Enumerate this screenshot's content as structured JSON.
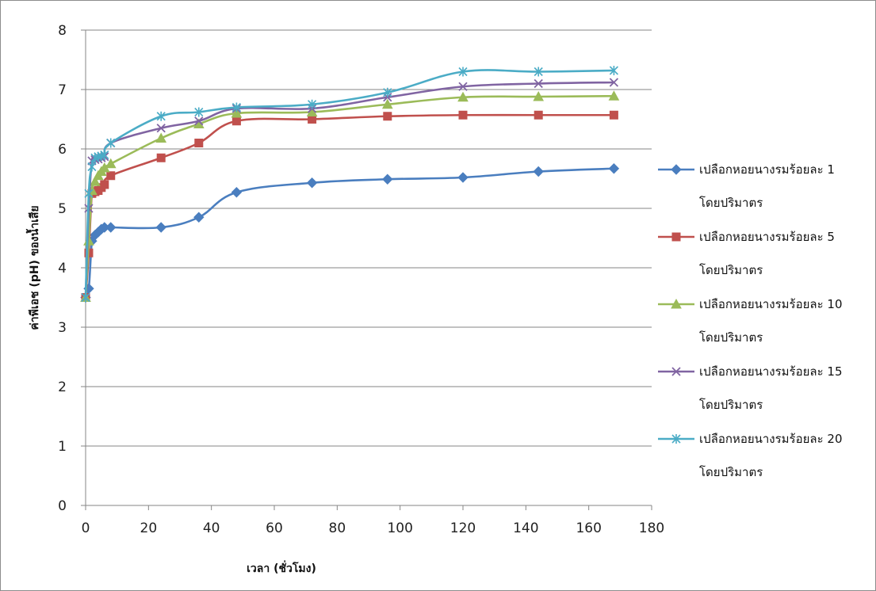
{
  "chart_data": {
    "type": "line",
    "title": "",
    "xlabel": "เวลา (ชั่วโมง)",
    "ylabel": "ค่าพีเอช (pH) ของน้ำเสีย",
    "xlim": [
      0,
      180
    ],
    "ylim": [
      0,
      8
    ],
    "xticks": [
      0,
      20,
      40,
      60,
      80,
      100,
      120,
      140,
      160,
      180
    ],
    "yticks": [
      0,
      1,
      2,
      3,
      4,
      5,
      6,
      7,
      8
    ],
    "grid": "horizontal",
    "legend_position": "right",
    "series": [
      {
        "name": "เปลือกหอยนางรมร้อยละ 1",
        "name_line2": "โดยปริมาตร",
        "color": "#4a7ebf",
        "marker": "diamond",
        "x": [
          0,
          1,
          2,
          3,
          4,
          5,
          6,
          8,
          24,
          36,
          48,
          72,
          96,
          120,
          144,
          168
        ],
        "y": [
          3.5,
          3.65,
          4.45,
          4.55,
          4.6,
          4.65,
          4.68,
          4.68,
          4.68,
          4.85,
          5.27,
          5.43,
          5.49,
          5.52,
          5.62,
          5.67
        ]
      },
      {
        "name": "เปลือกหอยนางรมร้อยละ 5",
        "name_line2": "โดยปริมาตร",
        "color": "#c0504d",
        "marker": "square",
        "x": [
          0,
          1,
          2,
          3,
          4,
          5,
          6,
          8,
          24,
          36,
          48,
          72,
          96,
          120,
          144,
          168
        ],
        "y": [
          3.5,
          4.25,
          5.25,
          5.28,
          5.3,
          5.35,
          5.4,
          5.55,
          5.85,
          6.1,
          6.47,
          6.5,
          6.55,
          6.57,
          6.57,
          6.57
        ]
      },
      {
        "name": "เปลือกหอยนางรมร้อยละ 10",
        "name_line2": "โดยปริมาตร",
        "color": "#9bbb59",
        "marker": "triangle",
        "x": [
          0,
          1,
          2,
          3,
          4,
          5,
          6,
          8,
          24,
          36,
          48,
          72,
          96,
          120,
          144,
          168
        ],
        "y": [
          3.5,
          4.45,
          5.3,
          5.45,
          5.55,
          5.62,
          5.68,
          5.75,
          6.18,
          6.42,
          6.6,
          6.62,
          6.75,
          6.87,
          6.88,
          6.89
        ]
      },
      {
        "name": "เปลือกหอยนางรมร้อยละ 15",
        "name_line2": "โดยปริมาตร",
        "color": "#8064a2",
        "marker": "x",
        "x": [
          0,
          1,
          2,
          3,
          4,
          5,
          6,
          8,
          24,
          36,
          48,
          72,
          96,
          120,
          144,
          168
        ],
        "y": [
          3.5,
          5.0,
          5.8,
          5.82,
          5.83,
          5.85,
          5.87,
          6.1,
          6.35,
          6.47,
          6.68,
          6.68,
          6.87,
          7.05,
          7.1,
          7.12
        ]
      },
      {
        "name": "เปลือกหอยนางรมร้อยละ 20",
        "name_line2": "โดยปริมาตร",
        "color": "#4bacc6",
        "marker": "star",
        "x": [
          0,
          1,
          2,
          3,
          4,
          5,
          6,
          8,
          24,
          36,
          48,
          72,
          96,
          120,
          144,
          168
        ],
        "y": [
          3.5,
          5.25,
          5.7,
          5.85,
          5.87,
          5.88,
          5.9,
          6.1,
          6.55,
          6.62,
          6.7,
          6.75,
          6.95,
          7.3,
          7.3,
          7.32
        ]
      }
    ]
  }
}
